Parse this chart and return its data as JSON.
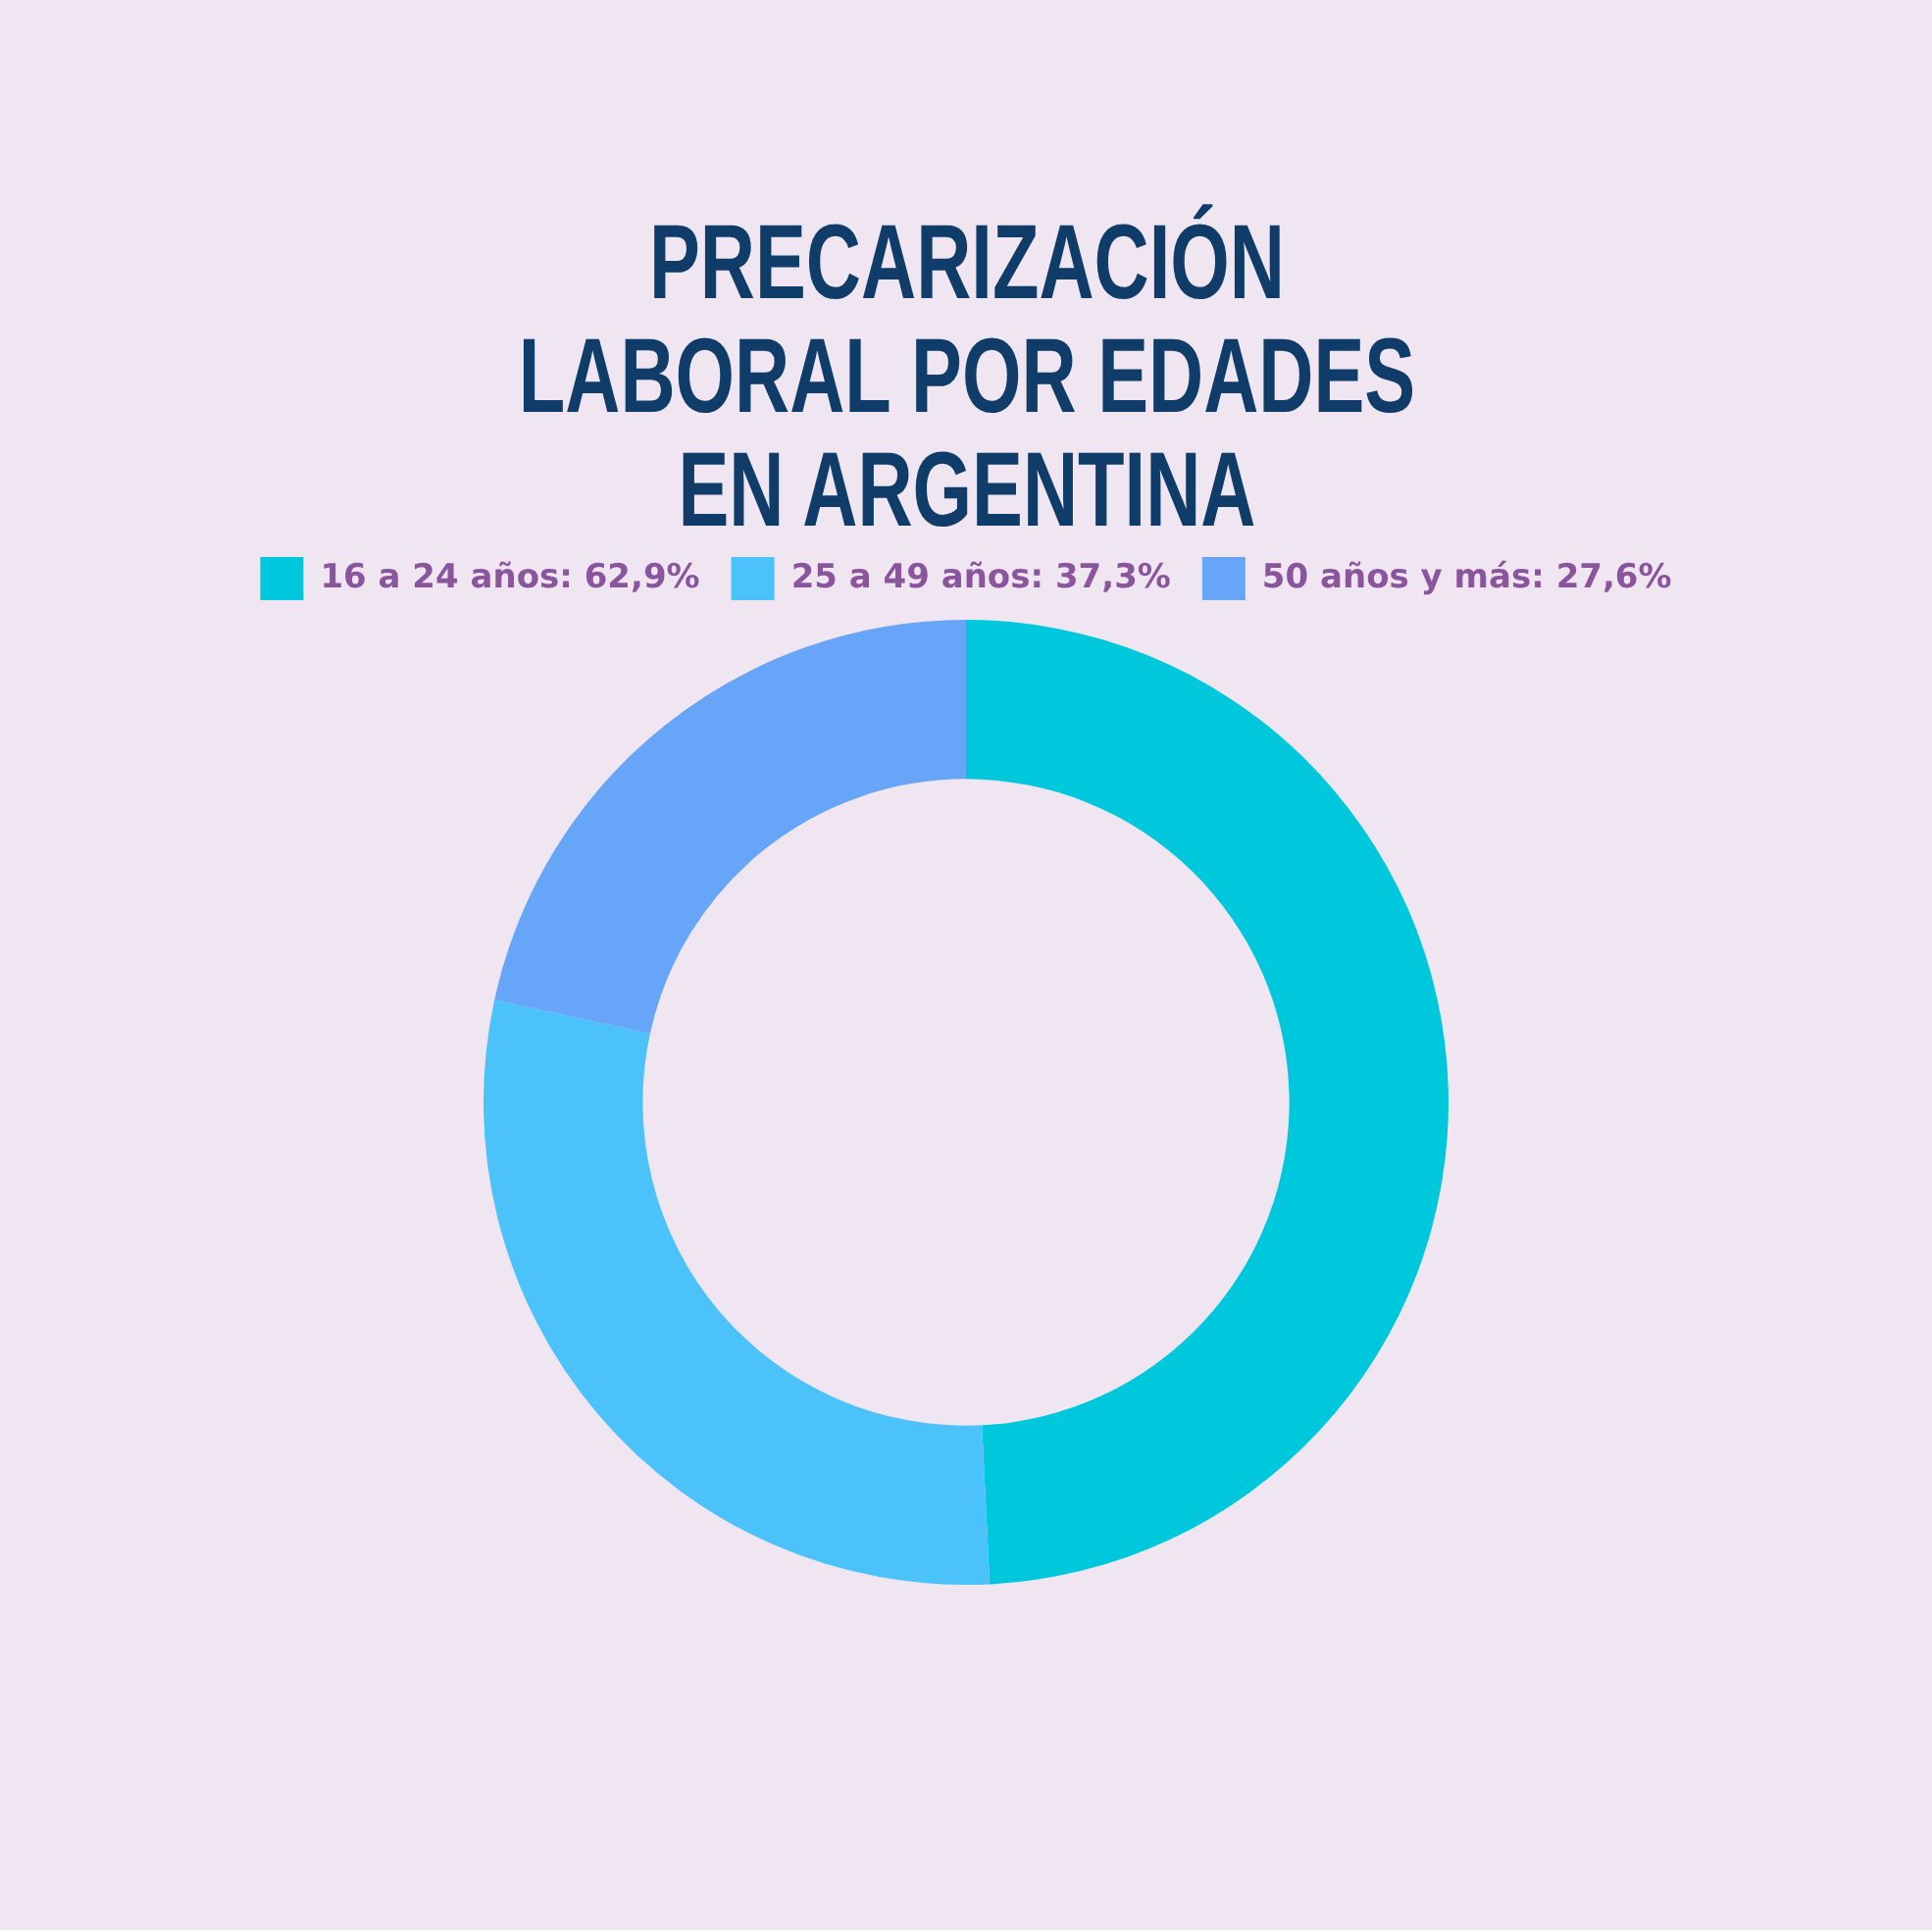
{
  "chart_data": {
    "type": "donut",
    "title": "PRECARIZACIÓN LABORAL POR EDADES EN ARGENTINA",
    "categories": [
      "16 a 24 años: 62,9%",
      "25 a 49 años: 37,3%",
      "50 años y más: 27,6%"
    ],
    "values": [
      62.9,
      37.3,
      27.6
    ],
    "colors": [
      "#00c8dc",
      "#4bc3fa",
      "#67a5f8"
    ],
    "legend": "top"
  }
}
